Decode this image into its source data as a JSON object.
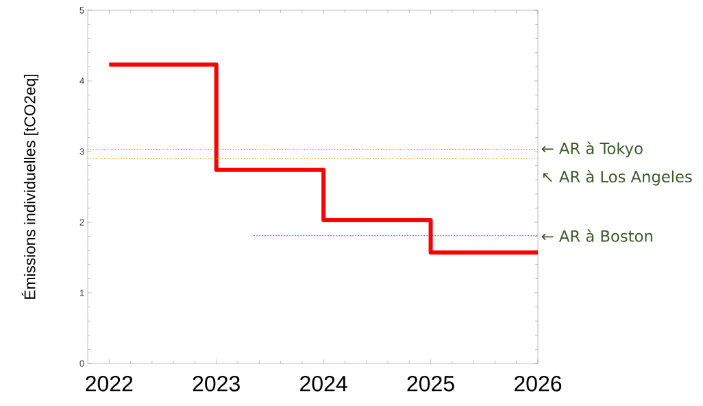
{
  "chart_data": {
    "type": "step",
    "ylabel": "Émissions individuelles [tCO2eq]",
    "x": [
      2022,
      2023,
      2024,
      2025,
      2026
    ],
    "series": [
      {
        "color": "#ff0000",
        "values": [
          4.23,
          2.74,
          2.03,
          1.57,
          1.57
        ]
      },
      {
        "name": "← AR à Boston",
        "color": "#ff00aa",
        "line_style": "dotted",
        "x": [
          2023.35,
          2026
        ],
        "values": [
          1.81,
          1.81
        ]
      }
    ],
    "xlim": [
      2021.8,
      2026
    ],
    "xticks": [
      2022,
      2023,
      2024,
      2025,
      2026
    ],
    "ylim": [
      0,
      5
    ],
    "yticks": [
      0,
      1,
      2,
      3,
      4,
      5
    ],
    "ref_lines": [
      {
        "axis": "y",
        "value": 3.03,
        "label": "← AR à Tokyo",
        "color": "#00ee00",
        "line_style": "dotted"
      },
      {
        "axis": "y",
        "value": 2.9,
        "label": "↖ AR à Los Angeles",
        "color": "#f0a030",
        "line_style": "dotted"
      }
    ],
    "grid": false
  }
}
